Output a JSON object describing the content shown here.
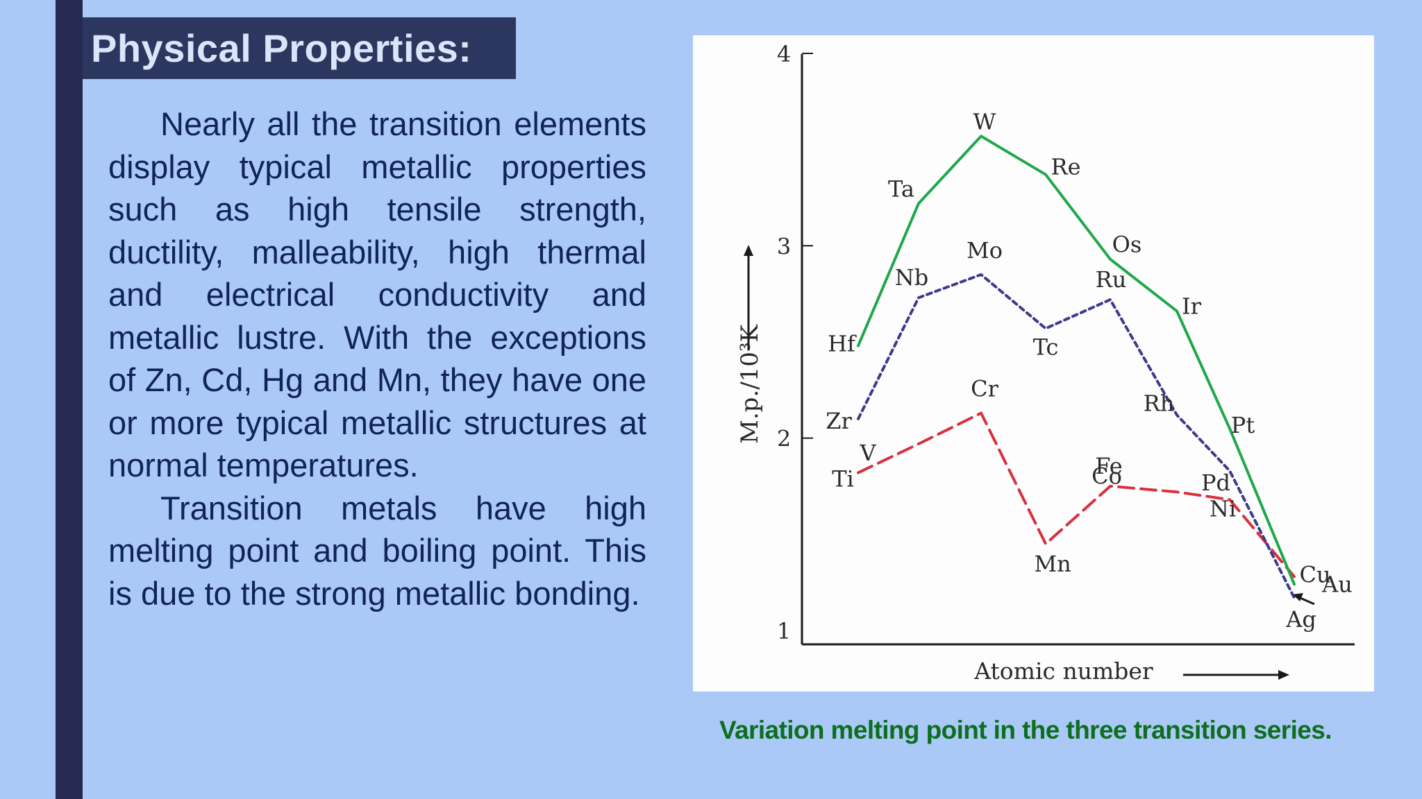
{
  "slide": {
    "title": "Physical Properties:",
    "paragraphs": [
      "Nearly all the transition elements display typical metallic properties such as high tensile strength, ductility, malleability, high thermal and electrical conductivity and metallic lustre. With the exceptions of Zn, Cd, Hg and Mn, they have one or more typical metallic structures at normal temperatures.",
      "Transition metals have high melting point and boiling point. This is due to the strong metallic bonding."
    ],
    "caption": "Variation melting point in the three transition series."
  },
  "colors": {
    "background": "#abc9f7",
    "accent_bar": "#262a52",
    "title_box": "#2c3760",
    "body_text": "#10235a",
    "caption": "#0c6e1e",
    "series_3d": "#d8303e",
    "series_4d": "#3c3a8c",
    "series_5d": "#1fa84a"
  },
  "chart_data": {
    "type": "line",
    "title": "",
    "xlabel": "Atomic number",
    "ylabel": "M.p./10³K",
    "ylim": [
      1,
      4
    ],
    "yticks": [
      "1",
      "2",
      "3",
      "4"
    ],
    "grid": false,
    "legend": "none",
    "series": [
      {
        "style": "dashed",
        "color": "#d8303e",
        "points": [
          {
            "label": "Ti",
            "x": 1,
            "y": 1.82
          },
          {
            "label": "V",
            "x": 2,
            "y": 1.97
          },
          {
            "label": "Cr",
            "x": 3,
            "y": 2.13
          },
          {
            "label": "Mn",
            "x": 4,
            "y": 1.45
          },
          {
            "label": "Fe",
            "x": 5,
            "y": 1.75
          },
          {
            "label": "Co",
            "x": 6,
            "y": 1.72
          },
          {
            "label": "Ni",
            "x": 7,
            "y": 1.68
          },
          {
            "label": "Cu",
            "x": 8,
            "y": 1.28
          }
        ]
      },
      {
        "style": "dotted",
        "color": "#3c3a8c",
        "points": [
          {
            "label": "Zr",
            "x": 1,
            "y": 2.1
          },
          {
            "label": "Nb",
            "x": 2,
            "y": 2.73
          },
          {
            "label": "Mo",
            "x": 3,
            "y": 2.85
          },
          {
            "label": "Tc",
            "x": 4,
            "y": 2.57
          },
          {
            "label": "Ru",
            "x": 5,
            "y": 2.72
          },
          {
            "label": "Rh",
            "x": 6,
            "y": 2.12
          },
          {
            "label": "Pd",
            "x": 7,
            "y": 1.83
          },
          {
            "label": "Ag",
            "x": 8,
            "y": 1.17
          }
        ]
      },
      {
        "style": "solid",
        "color": "#1fa84a",
        "points": [
          {
            "label": "Hf",
            "x": 1,
            "y": 2.48
          },
          {
            "label": "Ta",
            "x": 2,
            "y": 3.22
          },
          {
            "label": "W",
            "x": 3,
            "y": 3.57
          },
          {
            "label": "Re",
            "x": 4,
            "y": 3.37
          },
          {
            "label": "Os",
            "x": 5,
            "y": 2.93
          },
          {
            "label": "Ir",
            "x": 6,
            "y": 2.66
          },
          {
            "label": "Pt",
            "x": 7,
            "y": 2.05
          },
          {
            "label": "Au",
            "x": 8,
            "y": 1.24
          }
        ]
      }
    ]
  }
}
